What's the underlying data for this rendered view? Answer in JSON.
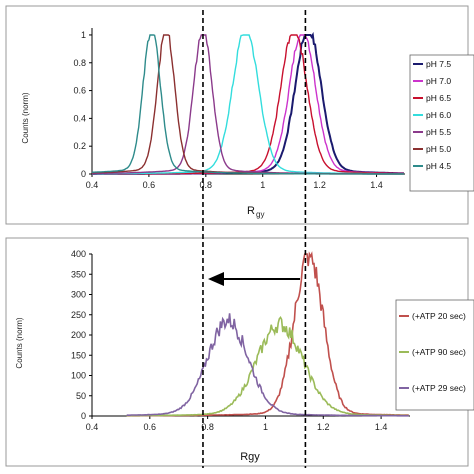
{
  "chart_data": [
    {
      "type": "line",
      "xlabel": "R",
      "xlabel_sub": "gy",
      "ylabel": "Counts (norm)",
      "xlim": [
        0.4,
        1.5
      ],
      "ylim": [
        0,
        1.05
      ],
      "x_ticks": [
        "0.4",
        "0.6",
        "0.8",
        "1",
        "1.2",
        "1.4"
      ],
      "y_ticks": [
        "0",
        "0.2",
        "0.4",
        "0.6",
        "0.8",
        "1"
      ],
      "grid": false,
      "legend_position": "right",
      "series": [
        {
          "name": "pH 7.5",
          "color": "#1a1a6e",
          "peak": 1.16,
          "width": 0.045
        },
        {
          "name": "pH 7.0",
          "color": "#cc33cc",
          "peak": 1.14,
          "width": 0.045
        },
        {
          "name": "pH 6.5",
          "color": "#c8102e",
          "peak": 1.11,
          "width": 0.045
        },
        {
          "name": "pH 6.0",
          "color": "#33dddd",
          "peak": 0.94,
          "width": 0.045
        },
        {
          "name": "pH 5.5",
          "color": "#8b3a8b",
          "peak": 0.79,
          "width": 0.032
        },
        {
          "name": "pH 5.0",
          "color": "#8b3030",
          "peak": 0.66,
          "width": 0.03
        },
        {
          "name": "pH 4.5",
          "color": "#2e8b8b",
          "peak": 0.61,
          "width": 0.03
        }
      ]
    },
    {
      "type": "line",
      "xlabel": "Rgy",
      "ylabel": "Counts (norm)",
      "xlim": [
        0.4,
        1.5
      ],
      "ylim": [
        0,
        400
      ],
      "x_ticks": [
        "0.4",
        "0.6",
        "0.8",
        "1",
        "1.2",
        "1.4"
      ],
      "y_ticks": [
        "0",
        "50",
        "100",
        "150",
        "200",
        "250",
        "300",
        "350",
        "400"
      ],
      "grid": false,
      "legend_position": "right",
      "series": [
        {
          "name": "(+ATP 20 sec)",
          "color": "#c0504d",
          "peak": 1.15,
          "height": 385,
          "width": 0.05
        },
        {
          "name": "(+ATP 90 sec)",
          "color": "#9bbb59",
          "peak": 1.05,
          "height": 215,
          "width": 0.08
        },
        {
          "name": "(+ATP 29 sec)",
          "color": "#8064a2",
          "peak": 0.87,
          "height": 225,
          "width": 0.07
        }
      ]
    }
  ],
  "reference_lines_x": [
    0.79,
    1.15
  ]
}
